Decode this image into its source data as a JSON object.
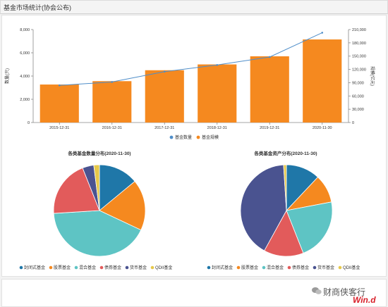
{
  "header": {
    "title": "基金市场统计(协会公布)"
  },
  "watermark": {
    "text": "财商侠客行",
    "brand": "Win.d"
  },
  "colors": {
    "bar": "#f5891f",
    "line": "#4f8ec9",
    "pie": [
      "#1f77a8",
      "#f5891f",
      "#5ec4c4",
      "#e25b5b",
      "#4a5390",
      "#e6c84a"
    ]
  },
  "chart_data": [
    {
      "type": "bar",
      "categories": [
        "2015-12-31",
        "2016-12-31",
        "2017-12-31",
        "2018-12-31",
        "2019-12-31",
        "2020-11-30"
      ],
      "series": [
        {
          "name": "基金数量",
          "type": "line",
          "axis": "right",
          "values": [
            84000,
            91600,
            115000,
            130000,
            148000,
            203000
          ]
        },
        {
          "name": "基金规模",
          "type": "bar",
          "axis": "left",
          "values": [
            3270,
            3560,
            4500,
            5000,
            5700,
            7150
          ]
        }
      ],
      "ylabel": "数量(只)",
      "y2label": "规模(亿元)",
      "ylim": [
        0,
        8000
      ],
      "y2lim": [
        0,
        210000
      ],
      "yticks": [
        "0",
        "2,000",
        "4,000",
        "6,000",
        "8,000"
      ],
      "y2ticks": [
        "0",
        "30,000",
        "60,000",
        "90,000",
        "120,000",
        "150,000",
        "180,000",
        "210,000"
      ],
      "legend": [
        "基金数量",
        "基金规模"
      ],
      "legend_position": "bottom",
      "grid": false
    },
    {
      "type": "pie",
      "title": "各类基金数量分布(2020-11-30)",
      "labels": [
        "封闭式基金",
        "股票基金",
        "混合基金",
        "债券基金",
        "货币基金",
        "QDII基金"
      ],
      "values": [
        14,
        18,
        42,
        20,
        4,
        2
      ],
      "legend_position": "bottom"
    },
    {
      "type": "pie",
      "title": "各类基金资产分布(2020-11-30)",
      "labels": [
        "封闭式基金",
        "股票基金",
        "混合基金",
        "债券基金",
        "货币基金",
        "QDII基金"
      ],
      "values": [
        12,
        10,
        22,
        14,
        41,
        1
      ],
      "legend_position": "bottom"
    }
  ]
}
